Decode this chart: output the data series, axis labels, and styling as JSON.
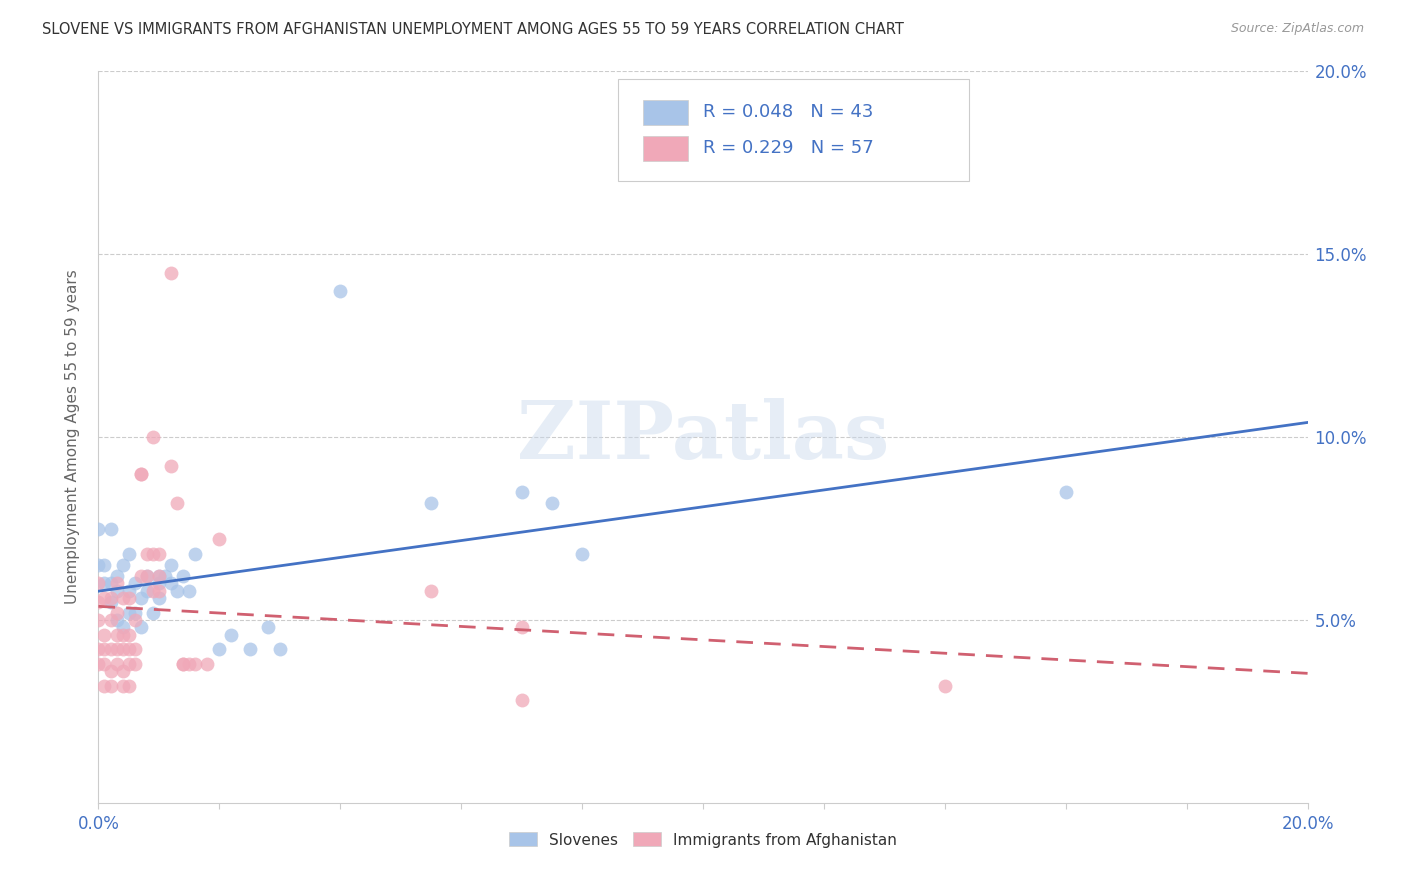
{
  "title": "SLOVENE VS IMMIGRANTS FROM AFGHANISTAN UNEMPLOYMENT AMONG AGES 55 TO 59 YEARS CORRELATION CHART",
  "source": "Source: ZipAtlas.com",
  "ylabel": "Unemployment Among Ages 55 to 59 years",
  "xlim": [
    0.0,
    0.2
  ],
  "ylim": [
    0.0,
    0.2
  ],
  "legend_R1": "R = 0.048",
  "legend_N1": "N = 43",
  "legend_R2": "R = 0.229",
  "legend_N2": "N = 57",
  "slovene_color": "#a8c4e8",
  "afghan_color": "#f0a8b8",
  "slovene_line_color": "#4472c4",
  "afghan_line_color": "#d06070",
  "slovene_points": [
    [
      0.0,
      0.075
    ],
    [
      0.0,
      0.065
    ],
    [
      0.001,
      0.06
    ],
    [
      0.001,
      0.065
    ],
    [
      0.002,
      0.075
    ],
    [
      0.002,
      0.055
    ],
    [
      0.002,
      0.06
    ],
    [
      0.003,
      0.058
    ],
    [
      0.003,
      0.05
    ],
    [
      0.003,
      0.062
    ],
    [
      0.004,
      0.065
    ],
    [
      0.004,
      0.048
    ],
    [
      0.005,
      0.052
    ],
    [
      0.005,
      0.058
    ],
    [
      0.005,
      0.068
    ],
    [
      0.006,
      0.06
    ],
    [
      0.006,
      0.052
    ],
    [
      0.007,
      0.048
    ],
    [
      0.007,
      0.056
    ],
    [
      0.008,
      0.062
    ],
    [
      0.008,
      0.058
    ],
    [
      0.009,
      0.052
    ],
    [
      0.01,
      0.056
    ],
    [
      0.01,
      0.062
    ],
    [
      0.01,
      0.06
    ],
    [
      0.011,
      0.062
    ],
    [
      0.012,
      0.065
    ],
    [
      0.012,
      0.06
    ],
    [
      0.013,
      0.058
    ],
    [
      0.014,
      0.062
    ],
    [
      0.015,
      0.058
    ],
    [
      0.016,
      0.068
    ],
    [
      0.02,
      0.042
    ],
    [
      0.022,
      0.046
    ],
    [
      0.025,
      0.042
    ],
    [
      0.028,
      0.048
    ],
    [
      0.03,
      0.042
    ],
    [
      0.04,
      0.14
    ],
    [
      0.055,
      0.082
    ],
    [
      0.07,
      0.085
    ],
    [
      0.075,
      0.082
    ],
    [
      0.08,
      0.068
    ],
    [
      0.16,
      0.085
    ]
  ],
  "afghan_points": [
    [
      0.0,
      0.042
    ],
    [
      0.0,
      0.05
    ],
    [
      0.0,
      0.055
    ],
    [
      0.0,
      0.06
    ],
    [
      0.0,
      0.038
    ],
    [
      0.001,
      0.042
    ],
    [
      0.001,
      0.046
    ],
    [
      0.001,
      0.032
    ],
    [
      0.001,
      0.056
    ],
    [
      0.001,
      0.038
    ],
    [
      0.002,
      0.042
    ],
    [
      0.002,
      0.036
    ],
    [
      0.002,
      0.032
    ],
    [
      0.002,
      0.05
    ],
    [
      0.002,
      0.056
    ],
    [
      0.003,
      0.042
    ],
    [
      0.003,
      0.038
    ],
    [
      0.003,
      0.046
    ],
    [
      0.003,
      0.052
    ],
    [
      0.003,
      0.06
    ],
    [
      0.004,
      0.042
    ],
    [
      0.004,
      0.036
    ],
    [
      0.004,
      0.032
    ],
    [
      0.004,
      0.046
    ],
    [
      0.004,
      0.056
    ],
    [
      0.005,
      0.042
    ],
    [
      0.005,
      0.038
    ],
    [
      0.005,
      0.046
    ],
    [
      0.005,
      0.056
    ],
    [
      0.005,
      0.032
    ],
    [
      0.006,
      0.042
    ],
    [
      0.006,
      0.05
    ],
    [
      0.006,
      0.038
    ],
    [
      0.007,
      0.09
    ],
    [
      0.007,
      0.09
    ],
    [
      0.007,
      0.062
    ],
    [
      0.008,
      0.068
    ],
    [
      0.008,
      0.062
    ],
    [
      0.009,
      0.058
    ],
    [
      0.009,
      0.068
    ],
    [
      0.009,
      0.1
    ],
    [
      0.01,
      0.058
    ],
    [
      0.01,
      0.062
    ],
    [
      0.01,
      0.068
    ],
    [
      0.012,
      0.092
    ],
    [
      0.012,
      0.145
    ],
    [
      0.013,
      0.082
    ],
    [
      0.014,
      0.038
    ],
    [
      0.014,
      0.038
    ],
    [
      0.015,
      0.038
    ],
    [
      0.016,
      0.038
    ],
    [
      0.018,
      0.038
    ],
    [
      0.02,
      0.072
    ],
    [
      0.055,
      0.058
    ],
    [
      0.07,
      0.048
    ],
    [
      0.07,
      0.028
    ],
    [
      0.14,
      0.032
    ]
  ]
}
